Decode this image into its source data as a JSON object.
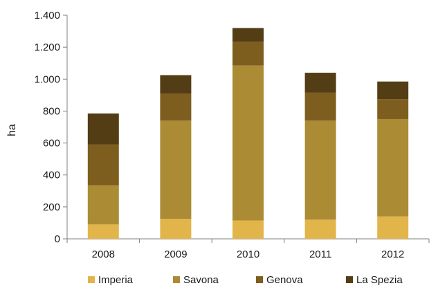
{
  "chart_data": {
    "type": "bar",
    "stacked": true,
    "title": "",
    "xlabel": "",
    "ylabel": "ha",
    "ylim": [
      0,
      1400
    ],
    "yticks": [
      0,
      200,
      400,
      600,
      800,
      1000,
      1200,
      1400
    ],
    "ytick_labels": [
      "0",
      "200",
      "400",
      "600",
      "800",
      "1.000",
      "1.200",
      "1.400"
    ],
    "grid": false,
    "legend_position": "bottom",
    "categories": [
      "2008",
      "2009",
      "2010",
      "2011",
      "2012"
    ],
    "series": [
      {
        "name": "Imperia",
        "color": "#e2b54a",
        "values": [
          90,
          125,
          115,
          120,
          140
        ]
      },
      {
        "name": "Savona",
        "color": "#ab8c34",
        "values": [
          245,
          615,
          970,
          620,
          610
        ]
      },
      {
        "name": "Genova",
        "color": "#7d5e1e",
        "values": [
          255,
          170,
          150,
          175,
          125
        ]
      },
      {
        "name": "La Spezia",
        "color": "#533d14",
        "values": [
          195,
          115,
          85,
          125,
          110
        ]
      }
    ]
  }
}
